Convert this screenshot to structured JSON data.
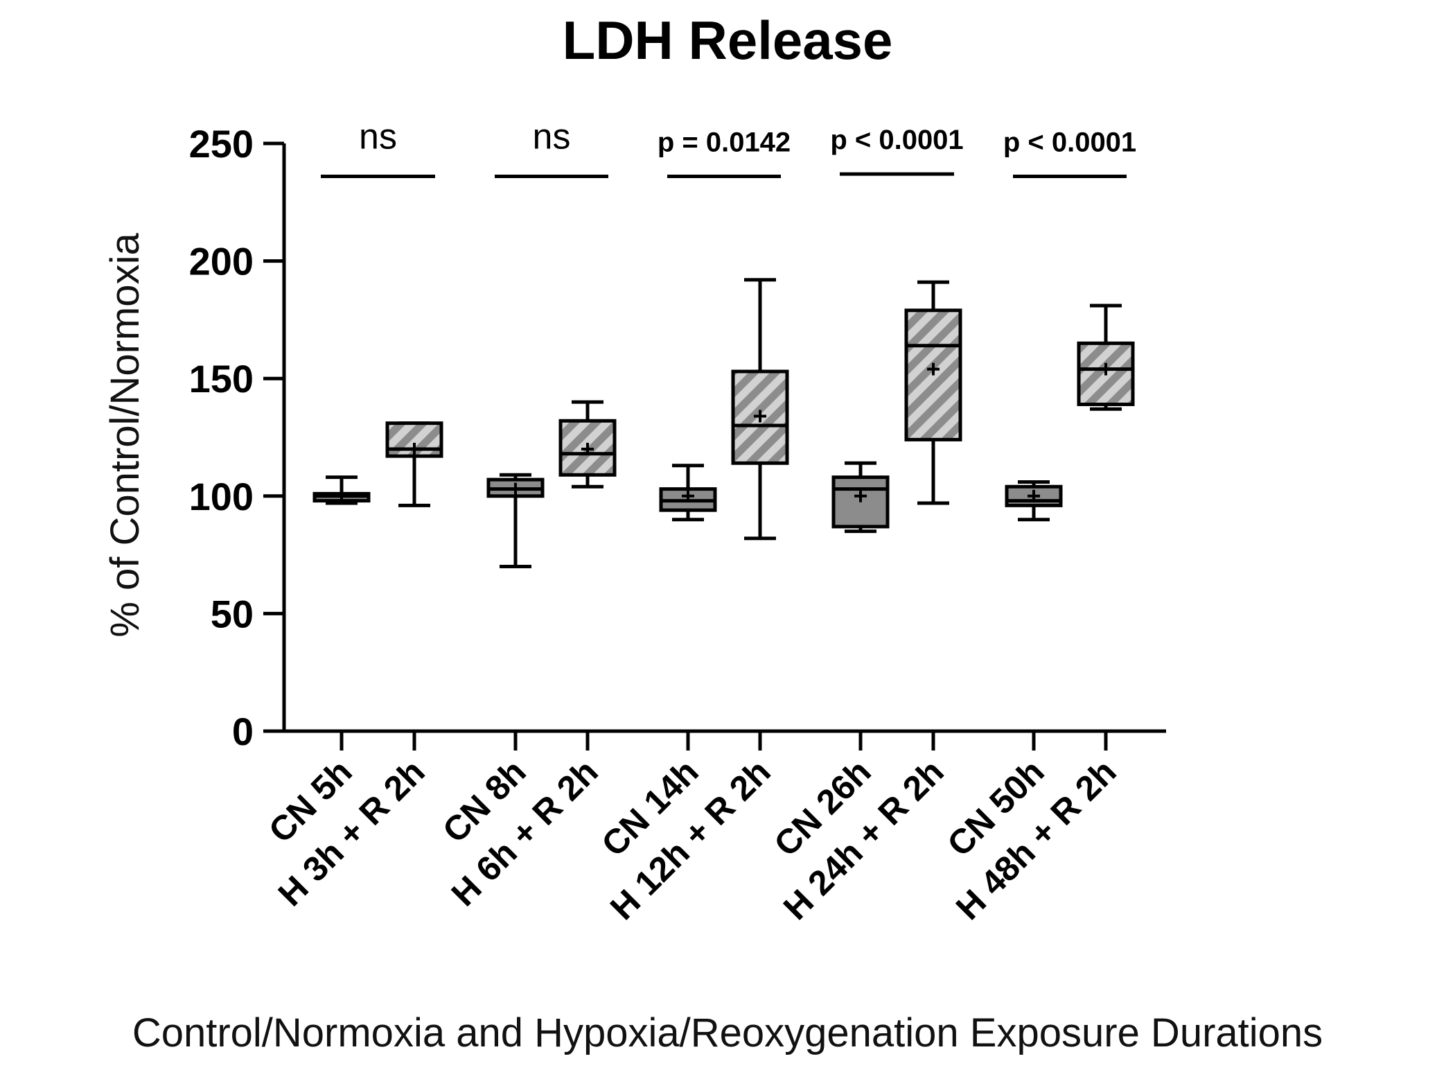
{
  "chart_data": {
    "type": "box",
    "title": "LDH Release",
    "xlabel": "Control/Normoxia and Hypoxia/Reoxygenation Exposure Durations",
    "ylabel": "% of Control/Normoxia",
    "ylim": [
      0,
      250
    ],
    "yticks": [
      0,
      50,
      100,
      150,
      200,
      250
    ],
    "grid": false,
    "colors": {
      "control_fill": "#8c8c8c",
      "hypoxia_fill": "#d2d2d2",
      "hatch": "#8c8c8c",
      "line": "#000000"
    },
    "groups": [
      {
        "label": "CN 5h",
        "style": "control",
        "min": 97,
        "q1": 98,
        "median": 100,
        "q3": 101,
        "max": 108,
        "mean": 100
      },
      {
        "label": "H 3h + R 2h",
        "style": "hypoxia",
        "min": 96,
        "q1": 117,
        "median": 120,
        "q3": 131,
        "max": 131,
        "mean": 120
      },
      {
        "label": "CN 8h",
        "style": "control",
        "min": 70,
        "q1": 100,
        "median": 103,
        "q3": 107,
        "max": 109,
        "mean": 103
      },
      {
        "label": "H 6h + R 2h",
        "style": "hypoxia",
        "min": 104,
        "q1": 109,
        "median": 118,
        "q3": 132,
        "max": 140,
        "mean": 120
      },
      {
        "label": "CN 14h",
        "style": "control",
        "min": 90,
        "q1": 94,
        "median": 98,
        "q3": 103,
        "max": 113,
        "mean": 100
      },
      {
        "label": "H 12h + R 2h",
        "style": "hypoxia",
        "min": 82,
        "q1": 114,
        "median": 130,
        "q3": 153,
        "max": 192,
        "mean": 134
      },
      {
        "label": "CN 26h",
        "style": "control",
        "min": 85,
        "q1": 87,
        "median": 103,
        "q3": 108,
        "max": 114,
        "mean": 100
      },
      {
        "label": "H 24h + R 2h",
        "style": "hypoxia",
        "min": 97,
        "q1": 124,
        "median": 164,
        "q3": 179,
        "max": 191,
        "mean": 154
      },
      {
        "label": "CN 50h",
        "style": "control",
        "min": 90,
        "q1": 96,
        "median": 98,
        "q3": 104,
        "max": 106,
        "mean": 100
      },
      {
        "label": "H 48h + R 2h",
        "style": "hypoxia",
        "min": 137,
        "q1": 139,
        "median": 154,
        "q3": 165,
        "max": 181,
        "mean": 154
      }
    ],
    "comparisons": [
      {
        "pair": [
          "CN 5h",
          "H 3h + R 2h"
        ],
        "label": "ns",
        "y": 236
      },
      {
        "pair": [
          "CN 8h",
          "H 6h + R 2h"
        ],
        "label": "ns",
        "y": 236
      },
      {
        "pair": [
          "CN 14h",
          "H 12h + R 2h"
        ],
        "label": "p = 0.0142",
        "y": 236
      },
      {
        "pair": [
          "CN 26h",
          "H 24h + R 2h"
        ],
        "label": "p < 0.0001",
        "y": 237
      },
      {
        "pair": [
          "CN 50h",
          "H 48h + R 2h"
        ],
        "label": "p < 0.0001",
        "y": 236
      }
    ]
  }
}
